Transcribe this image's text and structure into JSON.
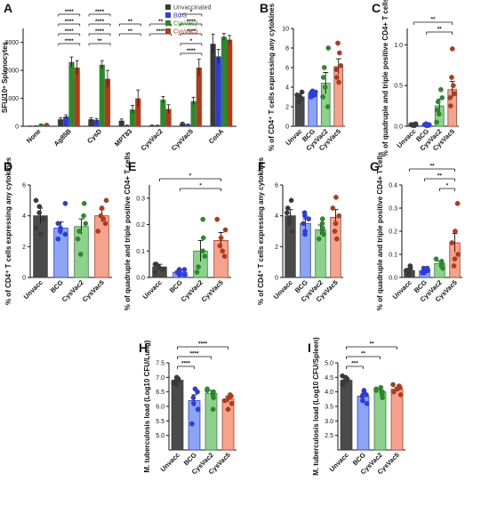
{
  "figure": {
    "colors": {
      "Unvaccinated": "#3a3a3a",
      "BCG": "#2c3ce0",
      "CysVac2": "#2a8a2a",
      "CysVac5": "#b23a1a",
      "Unvacc": "#3a3a3a"
    },
    "fills": {
      "Unvaccinated": "#4a4a4a",
      "BCG": "#8da4f2",
      "CysVac2": "#8ed08e",
      "CysVac5": "#f4a48e",
      "Unvacc": "#4a4a4a"
    }
  },
  "chart_data": [
    {
      "id": "A",
      "type": "bar",
      "panel_label": "A",
      "ylabel": "SFU/10⁶ Splenocytes",
      "ylim": [
        0,
        3500
      ],
      "yticks": [
        0,
        1000,
        2000,
        3000
      ],
      "categories": [
        "None",
        "Ag85B",
        "CysD",
        "MPT83",
        "CysVac2",
        "CysVac5",
        "ConA"
      ],
      "legend": [
        "Unvaccinated",
        "BCG",
        "CysVac2",
        "CysVac5"
      ],
      "series": [
        {
          "name": "Unvaccinated",
          "values": [
            5,
            250,
            250,
            200,
            30,
            120,
            2950
          ],
          "errors": [
            5,
            50,
            50,
            60,
            10,
            30,
            350
          ]
        },
        {
          "name": "BCG",
          "values": [
            10,
            350,
            230,
            30,
            30,
            60,
            2500
          ],
          "errors": [
            5,
            60,
            50,
            10,
            10,
            20,
            250
          ]
        },
        {
          "name": "CysVac2",
          "values": [
            60,
            2300,
            2200,
            600,
            950,
            900,
            3200
          ],
          "errors": [
            20,
            180,
            150,
            150,
            120,
            140,
            120
          ]
        },
        {
          "name": "CysVac5",
          "values": [
            80,
            2100,
            1700,
            1000,
            620,
            2100,
            3100
          ],
          "errors": [
            20,
            250,
            300,
            300,
            150,
            300,
            150
          ]
        }
      ],
      "significance": [
        "****",
        "****",
        "****",
        "****",
        "****",
        "****",
        "****",
        "**",
        "**",
        "**",
        "**",
        "****",
        "*",
        "****",
        "****",
        "*",
        "****"
      ]
    },
    {
      "id": "B",
      "type": "bar",
      "panel_label": "B",
      "ylabel": "% of CD4⁺ T cells expressing any cytokines",
      "ylim": [
        0,
        10
      ],
      "yticks": [
        0,
        2,
        4,
        6,
        8,
        10
      ],
      "categories": [
        "Unvac",
        "BCG",
        "CysVac2",
        "CysVac5"
      ],
      "values": [
        3.0,
        3.3,
        4.4,
        6.1
      ],
      "errors": [
        0.3,
        0.2,
        1.1,
        0.8
      ],
      "points": [
        [
          2.5,
          2.8,
          3.0,
          3.2,
          3.5,
          2.9
        ],
        [
          3.0,
          3.2,
          3.4,
          3.5,
          3.1,
          3.6
        ],
        [
          2.0,
          3.0,
          4.0,
          5.0,
          6.0,
          8.0
        ],
        [
          4.5,
          5.0,
          5.8,
          6.2,
          7.5,
          8.5
        ]
      ],
      "significance": []
    },
    {
      "id": "C",
      "type": "bar",
      "panel_label": "C",
      "ylabel": "% of quadruple and triple positive CD4+ T cells",
      "ylim": [
        0,
        1.2
      ],
      "yticks": [
        0.0,
        0.5,
        1.0
      ],
      "categories": [
        "Unvacc",
        "BCG",
        "CysVac2",
        "CysVac5"
      ],
      "values": [
        0.02,
        0.02,
        0.25,
        0.45
      ],
      "errors": [
        0.01,
        0.01,
        0.08,
        0.1
      ],
      "points": [
        [
          0.01,
          0.02,
          0.02,
          0.03,
          0.01,
          0.02
        ],
        [
          0.01,
          0.02,
          0.02,
          0.03,
          0.01,
          0.02
        ],
        [
          0.05,
          0.15,
          0.2,
          0.3,
          0.35,
          0.45
        ],
        [
          0.25,
          0.35,
          0.4,
          0.5,
          0.6,
          0.95
        ]
      ],
      "significance": [
        "**",
        "**"
      ]
    },
    {
      "id": "D",
      "type": "bar",
      "panel_label": "D",
      "ylabel": "% of CD4⁺ T cells expressing any cytokines",
      "ylim": [
        0,
        6
      ],
      "yticks": [
        0,
        2,
        4,
        6
      ],
      "categories": [
        "Unvacc",
        "BCG",
        "CysVac2",
        "CysVac5"
      ],
      "values": [
        4.0,
        3.2,
        3.3,
        4.0
      ],
      "errors": [
        0.5,
        0.4,
        0.5,
        0.4
      ],
      "points": [
        [
          2.8,
          3.2,
          3.8,
          4.2,
          4.6,
          5.0
        ],
        [
          2.5,
          2.8,
          3.0,
          3.2,
          3.5,
          4.8
        ],
        [
          1.5,
          2.5,
          3.0,
          3.5,
          4.0,
          4.8
        ],
        [
          3.0,
          3.5,
          3.8,
          4.0,
          4.5,
          5.0
        ]
      ],
      "significance": []
    },
    {
      "id": "E",
      "type": "bar",
      "panel_label": "E",
      "ylabel": "% of quadruple and triple positive CD4+ T cells",
      "ylim": [
        0,
        0.35
      ],
      "yticks": [
        0.0,
        0.1,
        0.2,
        0.3
      ],
      "categories": [
        "Unvacc",
        "BCG",
        "CysVac2",
        "CysVac5"
      ],
      "values": [
        0.04,
        0.02,
        0.1,
        0.14
      ],
      "errors": [
        0.01,
        0.01,
        0.04,
        0.03
      ],
      "points": [
        [
          0.02,
          0.03,
          0.04,
          0.04,
          0.05,
          0.05
        ],
        [
          0.01,
          0.01,
          0.02,
          0.02,
          0.03,
          0.03
        ],
        [
          0.02,
          0.04,
          0.08,
          0.1,
          0.15,
          0.22
        ],
        [
          0.08,
          0.1,
          0.12,
          0.15,
          0.18,
          0.22
        ]
      ],
      "significance": [
        "*",
        "*"
      ]
    },
    {
      "id": "F",
      "type": "bar",
      "panel_label": "F",
      "ylabel": "% of CD4⁺ T cells expressing any cytokines",
      "ylim": [
        0,
        6
      ],
      "yticks": [
        0,
        2,
        4,
        6
      ],
      "categories": [
        "Unvacc",
        "BCG",
        "CysVac2",
        "CysVac5"
      ],
      "values": [
        4.0,
        3.5,
        3.1,
        3.9
      ],
      "errors": [
        0.4,
        0.3,
        0.3,
        0.5
      ],
      "points": [
        [
          3.0,
          3.5,
          3.8,
          4.2,
          4.5,
          5.0
        ],
        [
          2.8,
          3.0,
          3.5,
          3.8,
          4.0,
          4.2
        ],
        [
          2.5,
          2.8,
          3.0,
          3.2,
          3.5,
          3.8
        ],
        [
          2.5,
          3.0,
          3.5,
          4.0,
          4.5,
          5.2
        ]
      ],
      "significance": []
    },
    {
      "id": "G",
      "type": "bar",
      "panel_label": "G",
      "ylabel": "% of quadruple and triple positive CD4+ T cells",
      "ylim": [
        0,
        0.4
      ],
      "yticks": [
        0.0,
        0.1,
        0.2,
        0.3,
        0.4
      ],
      "categories": [
        "Unvacc",
        "BCG",
        "CysVac2",
        "CysVac5"
      ],
      "values": [
        0.03,
        0.03,
        0.06,
        0.15
      ],
      "errors": [
        0.01,
        0.01,
        0.01,
        0.04
      ],
      "points": [
        [
          0.01,
          0.02,
          0.03,
          0.03,
          0.04,
          0.05
        ],
        [
          0.02,
          0.02,
          0.03,
          0.03,
          0.04,
          0.04
        ],
        [
          0.04,
          0.05,
          0.06,
          0.06,
          0.07,
          0.08
        ],
        [
          0.05,
          0.08,
          0.1,
          0.15,
          0.2,
          0.32
        ]
      ],
      "significance": [
        "**",
        "**",
        "*"
      ]
    },
    {
      "id": "H",
      "type": "bar",
      "panel_label": "H",
      "ylabel": "M. tuberculosis load (Log10 CFU/Lung)",
      "ylim": [
        4.5,
        7.5
      ],
      "yticks": [
        5.0,
        5.5,
        6.0,
        6.5,
        7.0,
        7.5
      ],
      "categories": [
        "Unvacc",
        "BCG",
        "CysVac2",
        "CysVac5"
      ],
      "values": [
        6.9,
        6.2,
        6.45,
        6.25
      ],
      "errors": [
        0.05,
        0.2,
        0.1,
        0.1
      ],
      "points": [
        [
          6.75,
          6.8,
          6.85,
          6.9,
          6.95,
          7.0
        ],
        [
          5.4,
          5.9,
          6.1,
          6.3,
          6.5,
          6.6
        ],
        [
          5.9,
          6.3,
          6.4,
          6.5,
          6.55,
          6.6
        ],
        [
          5.9,
          6.1,
          6.2,
          6.3,
          6.35,
          6.4
        ]
      ],
      "significance": [
        "****",
        "****",
        "****"
      ]
    },
    {
      "id": "I",
      "type": "bar",
      "panel_label": "I",
      "ylabel": "M. tuberculosis load (Log10 CFU/Spleen)",
      "ylim": [
        2.0,
        5.0
      ],
      "yticks": [
        2.5,
        3.0,
        3.5,
        4.0,
        4.5,
        5.0
      ],
      "categories": [
        "Unvacc",
        "BCG",
        "CysVac2",
        "CysVac5"
      ],
      "values": [
        4.4,
        3.85,
        4.0,
        4.1
      ],
      "errors": [
        0.05,
        0.08,
        0.06,
        0.06
      ],
      "points": [
        [
          4.25,
          4.35,
          4.4,
          4.45,
          4.5,
          4.55
        ],
        [
          3.6,
          3.7,
          3.85,
          3.9,
          4.0,
          4.05
        ],
        [
          3.8,
          3.9,
          4.0,
          4.05,
          4.1,
          4.15
        ],
        [
          3.9,
          4.0,
          4.1,
          4.15,
          4.2,
          4.25
        ]
      ],
      "significance": [
        "***",
        "**",
        "**"
      ]
    }
  ]
}
